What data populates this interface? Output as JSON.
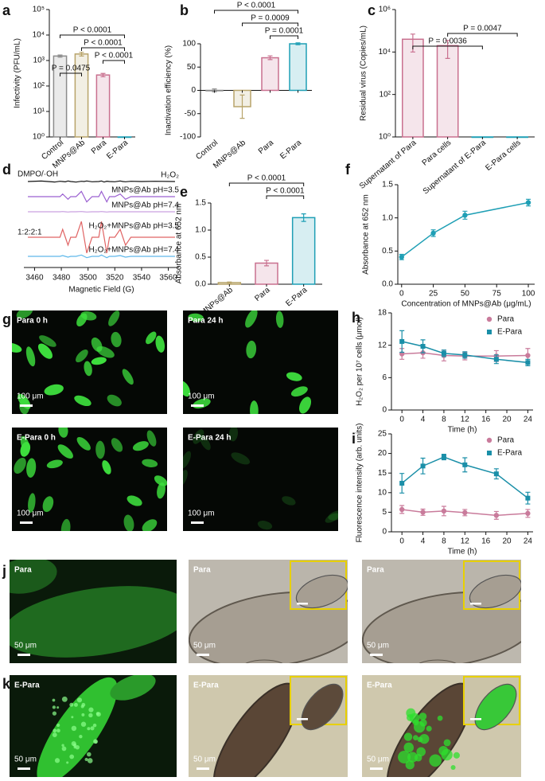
{
  "chart_data": [
    {
      "panel": "a",
      "type": "bar",
      "log": true,
      "ylabel": "Infectivity (PFU/mL)",
      "categories": [
        "Control",
        "MNPs@Ab",
        "Para",
        "E-Para"
      ],
      "values": [
        1500,
        1800,
        270,
        1
      ],
      "errors": [
        150,
        300,
        40,
        0
      ],
      "colors": [
        "#8c8c8c",
        "#b8a46a",
        "#c9708f",
        "#1f9fb5"
      ],
      "ylim": [
        1,
        100000
      ],
      "yticks": [
        {
          "value": 1,
          "label": "10⁰"
        },
        {
          "value": 10,
          "label": "10¹"
        },
        {
          "value": 100,
          "label": "10²"
        },
        {
          "value": 1000,
          "label": "10³"
        },
        {
          "value": 10000,
          "label": "10⁴"
        },
        {
          "value": 100000,
          "label": "10⁵"
        }
      ],
      "annotations": [
        {
          "text": "P = 0.0475",
          "between": [
            "Control",
            "MNPs@Ab"
          ]
        },
        {
          "text": "P < 0.0001",
          "between": [
            "Para",
            "E-Para"
          ]
        },
        {
          "text": "P < 0.0001",
          "between": [
            "MNPs@Ab",
            "E-Para"
          ]
        },
        {
          "text": "P < 0.0001",
          "between": [
            "Control",
            "E-Para"
          ]
        }
      ]
    },
    {
      "panel": "b",
      "type": "bar",
      "ylabel": "Inactivation efficiency (%)",
      "categories": [
        "Control",
        "MNPs@Ab",
        "Para",
        "E-Para"
      ],
      "values": [
        0,
        -35,
        70,
        100
      ],
      "errors": [
        3,
        25,
        4,
        2
      ],
      "colors": [
        "#8c8c8c",
        "#b8a46a",
        "#c9708f",
        "#1f9fb5"
      ],
      "ylim": [
        -100,
        100
      ],
      "yticks": [
        -100,
        -50,
        0,
        50,
        100
      ],
      "annotations": [
        {
          "text": "P = 0.0001",
          "between": [
            "Para",
            "E-Para"
          ]
        },
        {
          "text": "P = 0.0009",
          "between": [
            "MNPs@Ab",
            "E-Para"
          ]
        },
        {
          "text": "P < 0.0001",
          "between": [
            "Control",
            "E-Para"
          ]
        }
      ]
    },
    {
      "panel": "c",
      "type": "bar",
      "log": true,
      "ylabel": "Residual virus (Copies/mL)",
      "categories": [
        "Supernatant of Para",
        "Para cells",
        "Supernatant of E-Para",
        "E-Para cells"
      ],
      "values": [
        40000,
        20000,
        1,
        1
      ],
      "errors": [
        30000,
        15000,
        0,
        0
      ],
      "colors": [
        "#c9708f",
        "#c9708f",
        "#1f9fb5",
        "#1f9fb5"
      ],
      "ylim": [
        1,
        1000000
      ],
      "yticks": [
        {
          "value": 1,
          "label": "10⁰"
        },
        {
          "value": 100,
          "label": "10²"
        },
        {
          "value": 10000,
          "label": "10⁴"
        },
        {
          "value": 1000000,
          "label": "10⁶"
        }
      ],
      "annotations": [
        {
          "text": "P = 0.0036",
          "between": [
            "Supernatant of Para",
            "Supernatant of E-Para"
          ]
        },
        {
          "text": "P = 0.0047",
          "between": [
            "Para cells",
            "E-Para cells"
          ]
        }
      ]
    },
    {
      "panel": "d",
      "type": "spectrum",
      "xlabel": "Magnetic Field (G)",
      "xlim": [
        3452,
        3568
      ],
      "xticks": [
        3460,
        3480,
        3500,
        3520,
        3540,
        3560
      ],
      "x": [
        3455,
        3465,
        3475,
        3479,
        3481,
        3483,
        3485,
        3487,
        3491,
        3495,
        3497,
        3499,
        3503,
        3508,
        3510,
        3512,
        3514,
        3516,
        3520,
        3524,
        3526,
        3528,
        3532,
        3540,
        3550,
        3565
      ],
      "series": [
        {
          "name": "H₂O₂",
          "color": "#111111",
          "values": [
            0,
            0.2,
            -0.2,
            0.1,
            0,
            -0.1,
            0.2,
            0,
            -0.2,
            0.1,
            0,
            0.2,
            -0.1,
            0,
            0.2,
            -0.2,
            0.1,
            0,
            -0.1,
            0.2,
            0,
            -0.1,
            0.1,
            0,
            0.1,
            0
          ]
        },
        {
          "name": "MNPs@Ab pH=3.5",
          "color": "#9a5fd0",
          "values": [
            0,
            0,
            0,
            0,
            1,
            0,
            -1,
            0,
            0,
            2,
            0,
            -2,
            0,
            0,
            2,
            0,
            -2,
            0,
            0,
            1,
            0,
            -1,
            0,
            0,
            0,
            0
          ]
        },
        {
          "name": "MNPs@Ab pH=7.4",
          "color": "#c9a0e0",
          "values": [
            0,
            0,
            0,
            0,
            0.1,
            0,
            -0.1,
            0,
            0,
            0.1,
            0,
            -0.1,
            0,
            0,
            0.1,
            0,
            -0.1,
            0,
            0,
            0,
            0,
            0,
            0,
            0,
            0,
            0
          ]
        },
        {
          "name": "H₂O₂+MNPs@Ab pH=3.5",
          "color": "#e06464",
          "values": [
            0,
            0,
            0,
            0,
            3,
            0,
            -3,
            0,
            0,
            6,
            0,
            -6,
            0,
            0,
            6,
            0,
            -6,
            0,
            0,
            3,
            0,
            -3,
            0,
            0,
            0,
            0
          ]
        },
        {
          "name": "H₂O₂+MNPs@Ab pH=7.4",
          "color": "#5fb8ea",
          "values": [
            0,
            0,
            0,
            0,
            0.3,
            0,
            -0.3,
            0,
            0,
            0.5,
            0,
            -0.5,
            0,
            0,
            0.5,
            0,
            -0.5,
            0,
            0,
            0.3,
            0,
            -0.3,
            0,
            0,
            0,
            0
          ]
        }
      ],
      "notes": [
        {
          "text": "DMPO/·OH",
          "series": "H₂O₂"
        },
        {
          "text": "1:2:2:1",
          "series": "H₂O₂+MNPs@Ab pH=3.5"
        }
      ]
    },
    {
      "panel": "e",
      "type": "bar",
      "ylabel": "Absorbance at 652 nm",
      "categories": [
        "MNPs@Ab",
        "Para",
        "E-Para"
      ],
      "values": [
        0.03,
        0.39,
        1.23
      ],
      "errors": [
        0.01,
        0.05,
        0.07
      ],
      "colors": [
        "#b8a46a",
        "#c9708f",
        "#1f9fb5"
      ],
      "ylim": [
        0,
        1.5
      ],
      "yticks": [
        {
          "value": 0,
          "label": "0.0"
        },
        {
          "value": 0.5,
          "label": "0.5"
        },
        {
          "value": 1,
          "label": "1.0"
        },
        {
          "value": 1.5,
          "label": "1.5"
        }
      ],
      "annotations": [
        {
          "text": "P < 0.0001",
          "between": [
            "Para",
            "E-Para"
          ]
        },
        {
          "text": "P < 0.0001",
          "between": [
            "MNPs@Ab",
            "E-Para"
          ]
        }
      ]
    },
    {
      "panel": "f",
      "type": "line",
      "ylabel": "Absorbance at 652 nm",
      "xlabel": "Concentration of MNPs@Ab (μg/mL)",
      "x": [
        0,
        25,
        50,
        100
      ],
      "xlim": [
        -3,
        105
      ],
      "xticks": [
        0,
        25,
        50,
        75,
        100
      ],
      "ylim": [
        0,
        1.5
      ],
      "yticks": [
        {
          "value": 0,
          "label": "0.0"
        },
        {
          "value": 0.5,
          "label": "0.5"
        },
        {
          "value": 1,
          "label": "1.0"
        },
        {
          "value": 1.5,
          "label": "1.5"
        }
      ],
      "series": [
        {
          "color": "#1f9fb5",
          "marker": "circle",
          "values": [
            0.41,
            0.77,
            1.04,
            1.23
          ],
          "errors": [
            0.04,
            0.05,
            0.06,
            0.05
          ]
        }
      ]
    },
    {
      "panel": "h",
      "type": "line",
      "ylabel": "H₂O₂ per 10⁷ cells (μmol)",
      "xlabel": "Time (h)",
      "x": [
        0,
        4,
        8,
        12,
        18,
        24
      ],
      "xlim": [
        -2,
        25
      ],
      "xticks": [
        0,
        4,
        8,
        12,
        16,
        20,
        24
      ],
      "ylim": [
        0,
        18
      ],
      "yticks": [
        0,
        6,
        12,
        18
      ],
      "legend": "upper right",
      "series": [
        {
          "name": "Para",
          "color": "#c97b9b",
          "marker": "circle",
          "values": [
            10.4,
            10.6,
            10.1,
            10.0,
            10.0,
            10.1
          ],
          "errors": [
            1,
            1,
            1,
            0.7,
            1,
            1.3
          ]
        },
        {
          "name": "E-Para",
          "color": "#1a8fa8",
          "marker": "square",
          "values": [
            12.7,
            11.8,
            10.5,
            10.2,
            9.4,
            8.8
          ],
          "errors": [
            2,
            1.2,
            0.6,
            0.6,
            0.8,
            0.6
          ]
        }
      ]
    },
    {
      "panel": "i",
      "type": "line",
      "ylabel": "Fluorescence intensity (arb. units)",
      "xlabel": "Time (h)",
      "x": [
        0,
        4,
        8,
        12,
        18,
        24
      ],
      "xlim": [
        -2,
        25
      ],
      "xticks": [
        0,
        4,
        8,
        12,
        16,
        20,
        24
      ],
      "ylim": [
        0,
        25
      ],
      "yticks": [
        0,
        5,
        10,
        15,
        20,
        25
      ],
      "legend": "upper right",
      "series": [
        {
          "name": "Para",
          "color": "#c97b9b",
          "marker": "circle",
          "values": [
            5.7,
            5.0,
            5.3,
            4.9,
            4.2,
            4.7
          ],
          "errors": [
            1,
            0.8,
            1.2,
            0.8,
            1,
            1
          ]
        },
        {
          "name": "E-Para",
          "color": "#1a8fa8",
          "marker": "square",
          "values": [
            12.4,
            16.8,
            19.1,
            17.1,
            14.8,
            8.6
          ],
          "errors": [
            2.5,
            2,
            0.7,
            1.8,
            1.3,
            1.5
          ]
        }
      ]
    }
  ],
  "images": [
    {
      "panel": "g",
      "tiles": [
        {
          "label": "Para 0 h",
          "scale": "100 μm"
        },
        {
          "label": "Para 24 h",
          "scale": "100 μm"
        },
        {
          "label": "E-Para 0 h",
          "scale": "100 μm"
        },
        {
          "label": "E-Para 24 h",
          "scale": "100 μm"
        }
      ]
    },
    {
      "panel": "j",
      "tiles": [
        {
          "label": "Para",
          "scale": "50 μm"
        },
        {
          "label": "Para",
          "scale": "50 μm"
        },
        {
          "label": "Para",
          "scale": "50 μm"
        }
      ]
    },
    {
      "panel": "k",
      "tiles": [
        {
          "label": "E-Para",
          "scale": "50 μm"
        },
        {
          "label": "E-Para",
          "scale": "50 μm"
        },
        {
          "label": "E-Para",
          "scale": "50 μm"
        }
      ]
    }
  ]
}
